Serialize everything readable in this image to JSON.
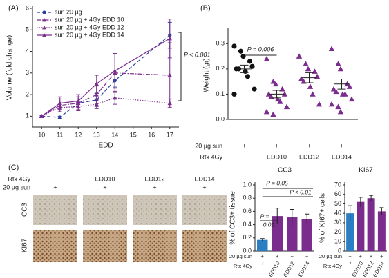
{
  "panel_labels": [
    "(A)",
    "(B)",
    "(C)"
  ],
  "chart_data": [
    {
      "type": "line",
      "xlabel": "EDD",
      "ylabel": "Volume (fold change)",
      "x": [
        10,
        11,
        12,
        13,
        14,
        17
      ],
      "xlim": [
        9.5,
        17.5
      ],
      "xticks": [
        10,
        11,
        12,
        13,
        14,
        15,
        16,
        17
      ],
      "ylim": [
        0.5,
        6
      ],
      "yticks": [
        1,
        2,
        3,
        4,
        5,
        6
      ],
      "series": [
        {
          "name": "sun 20 µg",
          "color": "#2b3f9e",
          "dash": "dashed",
          "marker": "circle",
          "values": [
            1.0,
            0.95,
            1.6,
            1.75,
            2.65,
            4.75
          ],
          "errors": [
            0.05,
            0.05,
            0.2,
            0.3,
            0.3,
            0.6
          ]
        },
        {
          "name": "sun 20 µg + 4Gy EDD 10",
          "color": "#7b2d8e",
          "dash": "dash-dot",
          "marker": "triangle",
          "values": [
            1.0,
            1.5,
            1.6,
            2.0,
            3.0,
            2.9
          ],
          "errors": [
            0.05,
            0.3,
            0.3,
            0.4,
            0.9,
            1.5
          ]
        },
        {
          "name": "sun 20 µg + 4Gy EDD 12",
          "color": "#7b2d8e",
          "dash": "dotted",
          "marker": "triangle",
          "values": [
            1.0,
            1.4,
            1.45,
            1.55,
            1.85,
            1.6
          ],
          "errors": [
            0.05,
            0.2,
            0.2,
            0.2,
            0.3,
            0.2
          ]
        },
        {
          "name": "sun 20 µg + 4Gy EDD 14",
          "color": "#7b2d8e",
          "dash": "solid",
          "marker": "triangle",
          "values": [
            1.0,
            1.6,
            1.7,
            2.5,
            3.1,
            4.6
          ],
          "errors": [
            0.05,
            0.3,
            0.3,
            0.4,
            0.8,
            0.9
          ]
        }
      ],
      "annotations": [
        "P < 0.001"
      ]
    },
    {
      "type": "dot",
      "ylabel": "Weight (gr)",
      "ylim": [
        0,
        0.35
      ],
      "yticks": [
        {
          "value": 0,
          "label": "0.0"
        },
        0.1,
        0.2,
        0.3
      ],
      "row_labels": [
        "20 µg sun",
        "Rtx 4Gy"
      ],
      "sun_labels": [
        "+",
        "+",
        "+",
        "+"
      ],
      "categories": [
        "−",
        "EDD10",
        "EDD12",
        "EDD14"
      ],
      "groups": [
        {
          "color": "#111111",
          "marker": "circle",
          "values": [
            0.29,
            0.27,
            0.25,
            0.23,
            0.21,
            0.2,
            0.2,
            0.19,
            0.17,
            0.12,
            0.1
          ],
          "mean": 0.2,
          "sem": 0.015
        },
        {
          "color": "#7b2d8e",
          "marker": "triangle",
          "values": [
            0.24,
            0.15,
            0.14,
            0.12,
            0.1,
            0.1,
            0.09,
            0.08,
            0.07,
            0.05,
            0.03,
            0.02
          ],
          "mean": 0.1,
          "sem": 0.015
        },
        {
          "color": "#7b2d8e",
          "marker": "triangle",
          "values": [
            0.25,
            0.22,
            0.2,
            0.19,
            0.17,
            0.16,
            0.15,
            0.13,
            0.1,
            0.06
          ],
          "mean": 0.165,
          "sem": 0.02
        },
        {
          "color": "#7b2d8e",
          "marker": "triangle",
          "values": [
            0.28,
            0.22,
            0.2,
            0.14,
            0.13,
            0.12,
            0.11,
            0.1,
            0.1,
            0.08,
            0.06,
            0.05,
            0.03
          ],
          "mean": 0.14,
          "sem": 0.02
        }
      ],
      "annotations": [
        "P = 0.006"
      ]
    },
    {
      "type": "bar",
      "title": "CC3",
      "ylabel": "% of CC3+ tissue",
      "ylim": [
        0,
        1
      ],
      "yticks": [
        {
          "value": 0,
          "label": "0.0"
        },
        0.2,
        0.4,
        0.6,
        0.8,
        {
          "value": 1,
          "label": "1.0"
        }
      ],
      "row_labels": [
        "20 µg sun",
        "Rtx 4Gy"
      ],
      "sun_labels": [
        "+",
        "+",
        "+",
        "+"
      ],
      "categories": [
        "−",
        "EDD10",
        "EDD12",
        "EDD14"
      ],
      "values": [
        0.17,
        0.53,
        0.51,
        0.48
      ],
      "errors": [
        0.02,
        0.12,
        0.12,
        0.08
      ],
      "colors": [
        "#2a7fc4",
        "#7b2d8e",
        "#7b2d8e",
        "#7b2d8e"
      ],
      "annotations": [
        "P = 0.05",
        "P < 0.01",
        "P =",
        "0.01"
      ]
    },
    {
      "type": "bar",
      "title": "KI67",
      "ylabel": "% of KI67+ cells",
      "ylim": [
        0,
        70
      ],
      "yticks": [
        0,
        10,
        20,
        30,
        40,
        50,
        60,
        70
      ],
      "row_labels": [
        "20 µg sun",
        "Rtx 4Gy"
      ],
      "sun_labels": [
        "+",
        "+",
        "+",
        "+"
      ],
      "categories": [
        "−",
        "EDD10",
        "EDD12",
        "EDD14"
      ],
      "values": [
        40,
        52,
        56,
        42
      ],
      "errors": [
        8,
        5,
        3,
        4
      ],
      "colors": [
        "#2a7fc4",
        "#7b2d8e",
        "#7b2d8e",
        "#7b2d8e"
      ]
    }
  ],
  "images": {
    "row_header_labels": [
      "Rtx 4Gy",
      "20 µg sun"
    ],
    "columns": [
      "−",
      "EDD10",
      "EDD12",
      "EDD14"
    ],
    "sun_labels": [
      "+",
      "+",
      "+",
      "+"
    ],
    "rows": [
      "CC3",
      "KI67"
    ]
  }
}
